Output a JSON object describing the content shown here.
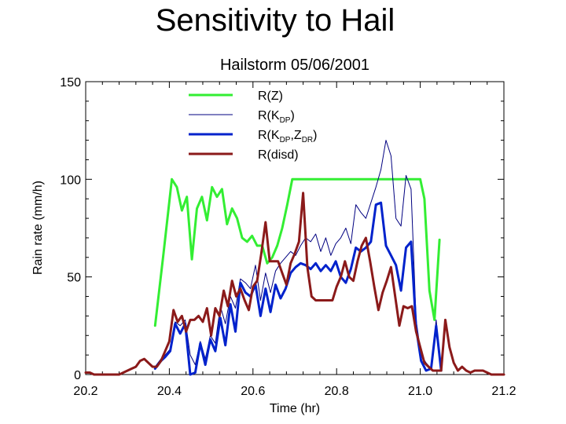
{
  "page": {
    "title": "Sensitivity to Hail"
  },
  "chart_data": {
    "type": "line",
    "title": "Hailstorm 05/06/2001",
    "xlabel": "Time (hr)",
    "ylabel": "Rain rate (mm/h)",
    "xlim": [
      20.2,
      21.2
    ],
    "ylim": [
      0,
      150
    ],
    "xticks": [
      "20.2",
      "20.4",
      "20.6",
      "20.8",
      "21.0",
      "21.2"
    ],
    "yticks": [
      "0",
      "50",
      "100",
      "150"
    ],
    "legend_position": "top-center",
    "series": [
      {
        "name": "R(Z)",
        "label_main": "R(Z)",
        "label_sub": "",
        "label_tail": "",
        "label_sub2": "",
        "label_close": "",
        "color": "#33ee33",
        "width": "thick",
        "x": [
          20.366,
          20.386,
          20.406,
          20.418,
          20.43,
          20.442,
          20.454,
          20.466,
          20.478,
          20.49,
          20.502,
          20.514,
          20.526,
          20.538,
          20.55,
          20.562,
          20.574,
          20.586,
          20.598,
          20.61,
          20.622,
          20.634,
          20.646,
          20.658,
          20.67,
          20.682,
          20.694,
          20.706,
          20.75,
          20.8,
          20.85,
          20.9,
          20.95,
          21.0,
          21.01,
          21.022,
          21.034,
          21.046
        ],
        "y": [
          25,
          62,
          100,
          96,
          84,
          91,
          59,
          85,
          91,
          79,
          96,
          91,
          95,
          77,
          85,
          80,
          70,
          68,
          71,
          66,
          66,
          57,
          60,
          66,
          75,
          87,
          100,
          100,
          100,
          100,
          100,
          100,
          100,
          100,
          90,
          43,
          28,
          69
        ]
      },
      {
        "name": "R(KDP)",
        "label_main": "R(K",
        "label_sub": "DP",
        "label_tail": ")",
        "label_sub2": "",
        "label_close": "",
        "color": "#000080",
        "width": "thin",
        "x": [
          20.366,
          20.38,
          20.39,
          20.402,
          20.414,
          20.426,
          20.438,
          20.45,
          20.462,
          20.474,
          20.486,
          20.498,
          20.51,
          20.522,
          20.534,
          20.546,
          20.558,
          20.57,
          20.582,
          20.594,
          20.606,
          20.618,
          20.63,
          20.642,
          20.654,
          20.666,
          20.678,
          20.69,
          20.702,
          20.714,
          20.726,
          20.738,
          20.75,
          20.762,
          20.774,
          20.786,
          20.798,
          20.81,
          20.822,
          20.834,
          20.846,
          20.858,
          20.87,
          20.882,
          20.894,
          20.906,
          20.918,
          20.93,
          20.942,
          20.954,
          20.966,
          20.978,
          20.99,
          21.002,
          21.014,
          21.026,
          21.038,
          21.05
        ],
        "y": [
          4,
          8,
          10,
          13,
          27,
          25,
          28,
          10,
          5,
          17,
          8,
          20,
          16,
          35,
          26,
          40,
          34,
          49,
          47,
          44,
          56,
          38,
          52,
          42,
          53,
          57,
          60,
          63,
          61,
          66,
          70,
          68,
          72,
          63,
          70,
          61,
          67,
          70,
          75,
          67,
          87,
          83,
          80,
          88,
          96,
          105,
          120,
          112,
          80,
          76,
          102,
          95,
          28,
          10,
          6,
          3,
          28,
          3
        ]
      },
      {
        "name": "R(KDP,ZDR)",
        "label_main": "R(K",
        "label_sub": "DP",
        "label_tail": ",Z",
        "label_sub2": "DR",
        "label_close": ")",
        "color": "#0022cc",
        "width": "thick",
        "x": [
          20.366,
          20.38,
          20.39,
          20.402,
          20.414,
          20.426,
          20.438,
          20.45,
          20.462,
          20.474,
          20.486,
          20.498,
          20.51,
          20.522,
          20.534,
          20.546,
          20.558,
          20.57,
          20.582,
          20.594,
          20.606,
          20.618,
          20.63,
          20.642,
          20.654,
          20.666,
          20.678,
          20.69,
          20.702,
          20.714,
          20.726,
          20.738,
          20.75,
          20.762,
          20.774,
          20.786,
          20.798,
          20.81,
          20.822,
          20.834,
          20.846,
          20.858,
          20.87,
          20.882,
          20.894,
          20.906,
          20.918,
          20.93,
          20.942,
          20.954,
          20.966,
          20.978,
          20.99,
          21.002,
          21.014,
          21.026,
          21.038,
          21.05
        ],
        "y": [
          3,
          7,
          9,
          12,
          26,
          21,
          26,
          0,
          1,
          16,
          5,
          18,
          12,
          29,
          15,
          36,
          22,
          47,
          42,
          40,
          46,
          30,
          44,
          32,
          46,
          39,
          44,
          52,
          55,
          57,
          56,
          54,
          57,
          53,
          56,
          53,
          58,
          50,
          47,
          54,
          65,
          63,
          65,
          68,
          87,
          88,
          66,
          61,
          56,
          43,
          65,
          68,
          24,
          7,
          2,
          3,
          25,
          2
        ]
      },
      {
        "name": "R(disd)",
        "label_main": "R(disd)",
        "label_sub": "",
        "label_tail": "",
        "label_sub2": "",
        "label_close": "",
        "color": "#8b1a1a",
        "width": "thick",
        "x": [
          20.2,
          20.21,
          20.22,
          20.23,
          20.24,
          20.25,
          20.26,
          20.27,
          20.28,
          20.29,
          20.3,
          20.31,
          20.32,
          20.33,
          20.34,
          20.35,
          20.36,
          20.37,
          20.38,
          20.39,
          20.4,
          20.41,
          20.42,
          20.43,
          20.44,
          20.45,
          20.46,
          20.47,
          20.48,
          20.49,
          20.5,
          20.51,
          20.52,
          20.53,
          20.54,
          20.55,
          20.56,
          20.57,
          20.58,
          20.59,
          20.6,
          20.61,
          20.62,
          20.63,
          20.64,
          20.65,
          20.66,
          20.67,
          20.68,
          20.69,
          20.7,
          20.71,
          20.72,
          20.73,
          20.74,
          20.75,
          20.76,
          20.77,
          20.78,
          20.79,
          20.8,
          20.81,
          20.82,
          20.83,
          20.84,
          20.85,
          20.86,
          20.87,
          20.88,
          20.89,
          20.9,
          20.91,
          20.92,
          20.93,
          20.94,
          20.95,
          20.96,
          20.97,
          20.98,
          20.99,
          21.0,
          21.01,
          21.02,
          21.03,
          21.04,
          21.05,
          21.06,
          21.07,
          21.08,
          21.09,
          21.1,
          21.11,
          21.12,
          21.13,
          21.14,
          21.15,
          21.16,
          21.17,
          21.18,
          21.19,
          21.2
        ],
        "y": [
          1,
          1,
          0,
          0,
          0,
          0,
          0,
          0,
          0,
          1,
          2,
          3,
          4,
          7,
          8,
          6,
          4,
          4,
          7,
          12,
          17,
          33,
          27,
          30,
          22,
          28,
          28,
          30,
          27,
          34,
          20,
          34,
          30,
          43,
          35,
          48,
          40,
          44,
          38,
          33,
          45,
          48,
          62,
          78,
          58,
          58,
          58,
          52,
          46,
          57,
          62,
          68,
          93,
          55,
          40,
          38,
          38,
          38,
          38,
          38,
          45,
          50,
          58,
          50,
          48,
          58,
          66,
          70,
          58,
          45,
          33,
          42,
          48,
          55,
          40,
          25,
          35,
          34,
          35,
          22,
          14,
          6,
          4,
          2,
          2,
          2,
          28,
          14,
          6,
          2,
          4,
          2,
          1,
          2,
          2,
          2,
          1,
          0,
          0,
          0,
          0
        ]
      }
    ]
  }
}
